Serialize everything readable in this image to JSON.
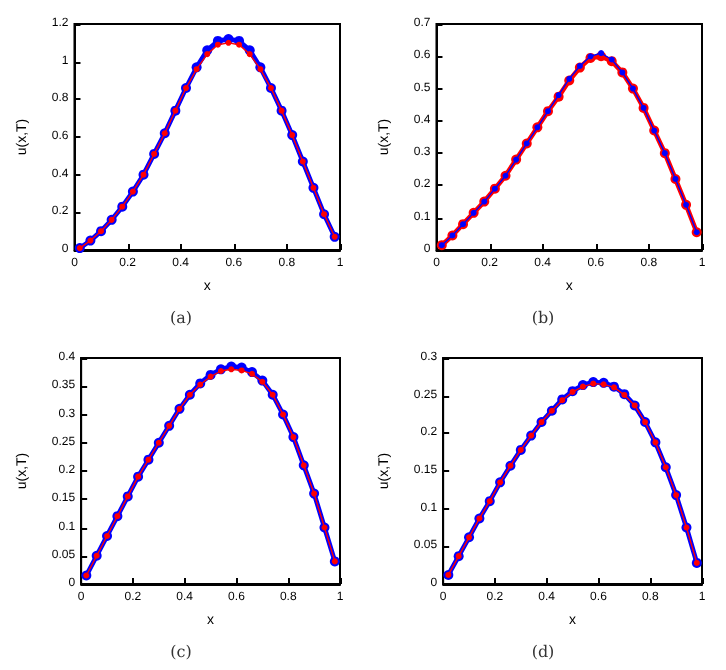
{
  "chart_data": [
    {
      "type": "line",
      "xlabel": "x",
      "ylabel": "u(x,T)",
      "annotations": [
        "(a)"
      ],
      "marker": "circle",
      "grid": false,
      "xlim": [
        0,
        1
      ],
      "xticks": [
        0,
        0.2,
        0.4,
        0.6,
        0.8,
        1
      ],
      "ylim": [
        0,
        1.2
      ],
      "yticks": [
        0,
        0.2,
        0.4,
        0.6,
        0.8,
        1,
        1.2
      ],
      "x": [
        0.02,
        0.06,
        0.1,
        0.14,
        0.18,
        0.22,
        0.26,
        0.3,
        0.34,
        0.38,
        0.42,
        0.46,
        0.5,
        0.54,
        0.58,
        0.62,
        0.66,
        0.7,
        0.74,
        0.78,
        0.82,
        0.86,
        0.9,
        0.94,
        0.98
      ],
      "series": [
        {
          "color": "#0000ff",
          "values": [
            0.01,
            0.05,
            0.1,
            0.16,
            0.23,
            0.31,
            0.4,
            0.51,
            0.62,
            0.74,
            0.86,
            0.97,
            1.06,
            1.11,
            1.12,
            1.11,
            1.06,
            0.97,
            0.86,
            0.74,
            0.61,
            0.47,
            0.33,
            0.19,
            0.07
          ]
        },
        {
          "color": "#ff0000",
          "values": [
            0.01,
            0.05,
            0.1,
            0.16,
            0.23,
            0.31,
            0.4,
            0.51,
            0.62,
            0.74,
            0.86,
            0.96,
            1.04,
            1.09,
            1.1,
            1.09,
            1.04,
            0.96,
            0.86,
            0.74,
            0.61,
            0.47,
            0.33,
            0.19,
            0.07
          ]
        }
      ]
    },
    {
      "type": "line",
      "xlabel": "x",
      "ylabel": "u(x,T)",
      "annotations": [
        "(b)"
      ],
      "marker": "circle",
      "grid": false,
      "xlim": [
        0,
        1
      ],
      "xticks": [
        0,
        0.2,
        0.4,
        0.6,
        0.8,
        1
      ],
      "ylim": [
        0,
        0.7
      ],
      "yticks": [
        0,
        0.1,
        0.2,
        0.3,
        0.4,
        0.5,
        0.6,
        0.7
      ],
      "x": [
        0.02,
        0.06,
        0.1,
        0.14,
        0.18,
        0.22,
        0.26,
        0.3,
        0.34,
        0.38,
        0.42,
        0.46,
        0.5,
        0.54,
        0.58,
        0.62,
        0.66,
        0.7,
        0.74,
        0.78,
        0.82,
        0.86,
        0.9,
        0.94,
        0.98
      ],
      "series": [
        {
          "color": "#ff0000",
          "values": [
            0.015,
            0.045,
            0.08,
            0.115,
            0.15,
            0.19,
            0.23,
            0.28,
            0.33,
            0.38,
            0.43,
            0.475,
            0.525,
            0.565,
            0.595,
            0.6,
            0.585,
            0.55,
            0.5,
            0.44,
            0.37,
            0.3,
            0.22,
            0.14,
            0.055
          ]
        },
        {
          "color": "#0000ff",
          "values": [
            0.015,
            0.045,
            0.08,
            0.115,
            0.15,
            0.19,
            0.23,
            0.28,
            0.33,
            0.38,
            0.43,
            0.48,
            0.53,
            0.57,
            0.6,
            0.61,
            0.59,
            0.55,
            0.5,
            0.44,
            0.37,
            0.3,
            0.22,
            0.14,
            0.055
          ]
        }
      ]
    },
    {
      "type": "line",
      "xlabel": "x",
      "ylabel": "u(x,T)",
      "annotations": [
        "(c)"
      ],
      "marker": "circle",
      "grid": false,
      "xlim": [
        0,
        1
      ],
      "xticks": [
        0,
        0.2,
        0.4,
        0.6,
        0.8,
        1
      ],
      "ylim": [
        0,
        0.4
      ],
      "yticks": [
        0,
        0.05,
        0.1,
        0.15,
        0.2,
        0.25,
        0.3,
        0.35,
        0.4
      ],
      "x": [
        0.02,
        0.06,
        0.1,
        0.14,
        0.18,
        0.22,
        0.26,
        0.3,
        0.34,
        0.38,
        0.42,
        0.46,
        0.5,
        0.54,
        0.58,
        0.62,
        0.66,
        0.7,
        0.74,
        0.78,
        0.82,
        0.86,
        0.9,
        0.94,
        0.98
      ],
      "series": [
        {
          "color": "#0000ff",
          "values": [
            0.015,
            0.05,
            0.085,
            0.12,
            0.155,
            0.19,
            0.22,
            0.25,
            0.28,
            0.31,
            0.335,
            0.355,
            0.37,
            0.38,
            0.385,
            0.383,
            0.375,
            0.36,
            0.335,
            0.3,
            0.26,
            0.21,
            0.16,
            0.1,
            0.04
          ]
        },
        {
          "color": "#ff0000",
          "values": [
            0.015,
            0.05,
            0.085,
            0.12,
            0.155,
            0.19,
            0.22,
            0.25,
            0.28,
            0.31,
            0.335,
            0.353,
            0.367,
            0.377,
            0.38,
            0.378,
            0.372,
            0.358,
            0.335,
            0.3,
            0.26,
            0.21,
            0.16,
            0.1,
            0.04
          ]
        }
      ]
    },
    {
      "type": "line",
      "xlabel": "x",
      "ylabel": "u(x,T)",
      "annotations": [
        "(d)"
      ],
      "marker": "circle",
      "grid": false,
      "xlim": [
        0,
        1
      ],
      "xticks": [
        0,
        0.2,
        0.4,
        0.6,
        0.8,
        1
      ],
      "ylim": [
        0,
        0.3
      ],
      "yticks": [
        0,
        0.05,
        0.1,
        0.15,
        0.2,
        0.25,
        0.3
      ],
      "x": [
        0.02,
        0.06,
        0.1,
        0.14,
        0.18,
        0.22,
        0.26,
        0.3,
        0.34,
        0.38,
        0.42,
        0.46,
        0.5,
        0.54,
        0.58,
        0.62,
        0.66,
        0.7,
        0.74,
        0.78,
        0.82,
        0.86,
        0.9,
        0.94,
        0.98
      ],
      "series": [
        {
          "color": "#0000ff",
          "values": [
            0.012,
            0.037,
            0.062,
            0.087,
            0.11,
            0.135,
            0.157,
            0.178,
            0.197,
            0.215,
            0.23,
            0.245,
            0.256,
            0.264,
            0.268,
            0.267,
            0.262,
            0.252,
            0.237,
            0.215,
            0.188,
            0.155,
            0.118,
            0.075,
            0.028
          ]
        },
        {
          "color": "#ff0000",
          "values": [
            0.012,
            0.037,
            0.062,
            0.087,
            0.11,
            0.135,
            0.157,
            0.178,
            0.197,
            0.215,
            0.23,
            0.244,
            0.255,
            0.262,
            0.266,
            0.265,
            0.261,
            0.251,
            0.237,
            0.215,
            0.188,
            0.155,
            0.118,
            0.075,
            0.028
          ]
        }
      ]
    }
  ]
}
